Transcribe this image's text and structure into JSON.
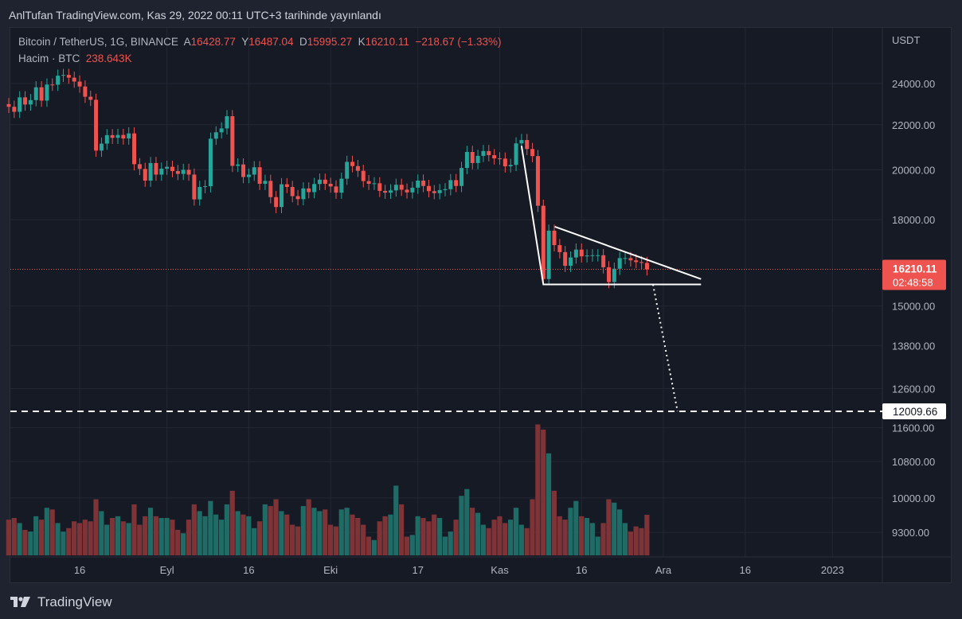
{
  "published_line": "AnlTufan TradingView.com, Kas 29, 2022 00:11 UTC+3 tarihinde yayınlandı",
  "legend": {
    "symbol": "Bitcoin / TetherUS, 1G, BINANCE",
    "open_label": "A",
    "open": "16428.77",
    "high_label": "Y",
    "high": "16487.04",
    "low_label": "D",
    "low": "15995.27",
    "close_label": "K",
    "close": "16210.11",
    "change": "−218.67 (−1.33%)",
    "volume_label": "Hacim · BTC",
    "volume": "238.643K"
  },
  "footer_logo": "TradingView",
  "colors": {
    "up": "#26a69a",
    "down": "#ef5350",
    "vol_up": "#1f6b65",
    "vol_down": "#7e3337",
    "background": "#161a25"
  },
  "chart_data": {
    "type": "candlestick",
    "currency": "USDT",
    "scale": "log",
    "start_date": "2022-08-03",
    "first_open": 22980,
    "close": [
      22850,
      22610,
      23310,
      22960,
      23175,
      23810,
      23150,
      23950,
      23940,
      24400,
      24440,
      24300,
      24100,
      23850,
      23340,
      23190,
      20830,
      21140,
      21520,
      21400,
      21530,
      21370,
      21600,
      20240,
      20040,
      19550,
      20290,
      19800,
      20050,
      20130,
      19950,
      19830,
      20000,
      19800,
      18790,
      19290,
      19320,
      21360,
      21650,
      21830,
      22400,
      20170,
      20230,
      19700,
      19800,
      20110,
      19420,
      19540,
      18880,
      18490,
      19400,
      19290,
      18920,
      18800,
      19230,
      19080,
      19410,
      19590,
      19420,
      19310,
      19060,
      19630,
      20340,
      20160,
      19960,
      19530,
      19420,
      19440,
      19130,
      19060,
      19150,
      19380,
      19180,
      19070,
      19260,
      19550,
      19330,
      19120,
      19040,
      19160,
      19200,
      19570,
      19330,
      20080,
      20770,
      20290,
      20600,
      20810,
      20630,
      20490,
      20480,
      20150,
      20210,
      21150,
      21300,
      20900,
      20590,
      18540,
      15880,
      17590,
      17060,
      16810,
      16330,
      16620,
      16900,
      16660,
      16690,
      16700,
      16700,
      16280,
      15780,
      16230,
      16600,
      16600,
      16520,
      16460,
      16430,
      16210.11
    ],
    "volume_k": [
      210,
      220,
      190,
      150,
      140,
      230,
      210,
      280,
      270,
      190,
      140,
      160,
      200,
      190,
      210,
      200,
      330,
      260,
      180,
      220,
      230,
      200,
      190,
      300,
      180,
      230,
      280,
      230,
      220,
      220,
      210,
      150,
      130,
      210,
      300,
      260,
      230,
      320,
      240,
      210,
      300,
      380,
      260,
      240,
      230,
      160,
      200,
      300,
      290,
      330,
      260,
      240,
      180,
      170,
      290,
      330,
      280,
      260,
      270,
      180,
      170,
      270,
      280,
      240,
      220,
      180,
      110,
      90,
      200,
      230,
      240,
      410,
      300,
      110,
      120,
      230,
      220,
      200,
      240,
      220,
      110,
      140,
      210,
      350,
      390,
      280,
      250,
      180,
      160,
      210,
      230,
      190,
      210,
      280,
      180,
      160,
      330,
      770,
      740,
      600,
      380,
      230,
      210,
      280,
      320,
      230,
      220,
      190,
      110,
      190,
      330,
      310,
      270,
      190,
      140,
      170,
      160,
      238.643
    ],
    "price_ticks": [
      "24000.00",
      "22000.00",
      "20000.00",
      "18000.00",
      "15000.00",
      "13800.00",
      "12600.00",
      "11600.00",
      "10800.00",
      "10000.00",
      "9300.00"
    ],
    "price_tick_values": [
      24000,
      22000,
      20000,
      18000,
      15000,
      13800,
      12600,
      11600,
      10800,
      10000,
      9300
    ],
    "x_ticks": [
      {
        "label": "16",
        "day": 13
      },
      {
        "label": "Eyl",
        "day": 29
      },
      {
        "label": "16",
        "day": 44
      },
      {
        "label": "Eki",
        "day": 59
      },
      {
        "label": "17",
        "day": 75
      },
      {
        "label": "Kas",
        "day": 90
      },
      {
        "label": "16",
        "day": 105
      },
      {
        "label": "Ara",
        "day": 120
      },
      {
        "label": "16",
        "day": 135
      },
      {
        "label": "2023",
        "day": 151
      }
    ],
    "last_price": {
      "value": 16210.11,
      "label": "16210.11",
      "countdown": "02:48:58"
    },
    "target_line": {
      "value": 12009.66,
      "label": "12009.66"
    },
    "drawings": {
      "triangle": [
        [
          94,
          21040
        ],
        [
          98,
          15700
        ],
        [
          126.9,
          15700
        ],
        [
          100.1,
          17735
        ]
      ],
      "descending_edge": [
        [
          100.1,
          17735
        ],
        [
          126.9,
          15880
        ]
      ],
      "projection": [
        [
          118.1,
          15700
        ],
        [
          122.6,
          12009.66
        ]
      ]
    }
  }
}
